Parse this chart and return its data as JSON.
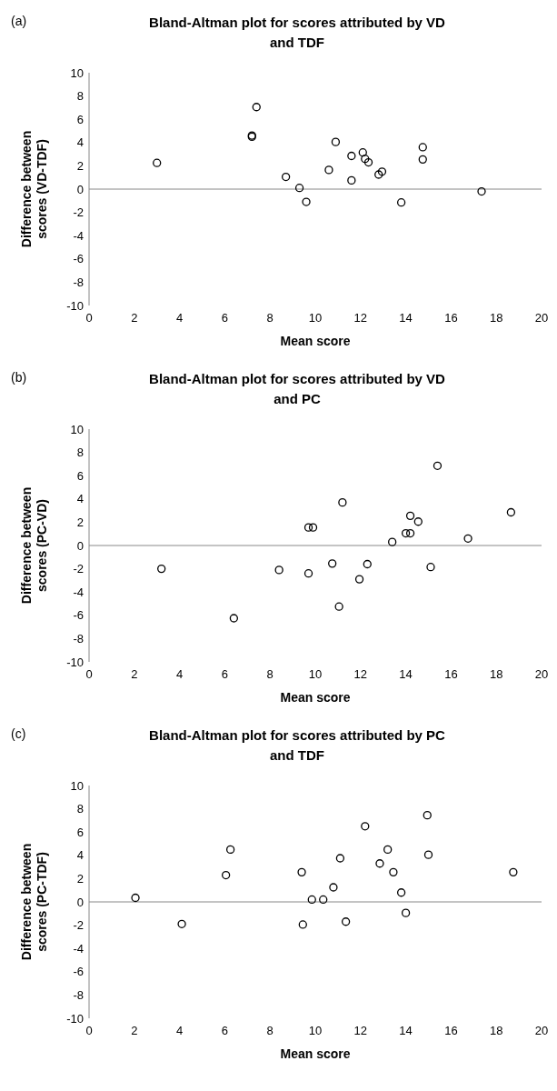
{
  "chart_data": [
    {
      "type": "scatter",
      "title": "Bland-Altman plot for scores attributed by VD and TDF",
      "annotations": [
        "(a)"
      ],
      "xlabel": "Mean score",
      "ylabel": "Difference between scores (VD-TDF)",
      "marker": "circle",
      "xlim": [
        0,
        20
      ],
      "xticks": [
        0,
        2,
        4,
        6,
        8,
        10,
        12,
        14,
        16,
        18,
        20
      ],
      "ylim": [
        -10,
        10
      ],
      "yticks": [
        -10,
        -8,
        -6,
        -4,
        -2,
        0,
        2,
        4,
        6,
        8,
        10
      ],
      "series": [
        {
          "color": "#000000",
          "x": [
            3.0,
            7.2,
            7.2,
            7.4,
            8.7,
            9.3,
            9.6,
            10.6,
            10.9,
            11.6,
            11.6,
            12.1,
            12.2,
            12.35,
            12.8,
            12.95,
            13.8,
            14.75,
            14.75,
            17.35
          ],
          "values": [
            2.25,
            4.5,
            4.6,
            7.05,
            1.05,
            0.1,
            -1.1,
            1.65,
            4.05,
            2.85,
            0.75,
            3.15,
            2.6,
            2.3,
            1.25,
            1.5,
            -1.15,
            3.6,
            2.55,
            -0.2
          ]
        }
      ]
    },
    {
      "type": "scatter",
      "title": "Bland-Altman plot for scores attributed by VD and PC",
      "annotations": [
        "(b)"
      ],
      "xlabel": "Mean score",
      "ylabel": "Difference between scores (PC-VD)",
      "marker": "circle",
      "xlim": [
        0,
        20
      ],
      "xticks": [
        0,
        2,
        4,
        6,
        8,
        10,
        12,
        14,
        16,
        18,
        20
      ],
      "ylim": [
        -10,
        10
      ],
      "yticks": [
        -10,
        -8,
        -6,
        -4,
        -2,
        0,
        2,
        4,
        6,
        8,
        10
      ],
      "series": [
        {
          "color": "#000000",
          "x": [
            3.2,
            6.4,
            8.4,
            9.7,
            9.7,
            9.9,
            10.75,
            11.05,
            11.2,
            11.95,
            12.3,
            13.4,
            14.0,
            14.2,
            14.2,
            14.55,
            15.1,
            15.4,
            16.75,
            18.65
          ],
          "values": [
            -2.0,
            -6.25,
            -2.1,
            -2.4,
            1.55,
            1.55,
            -1.55,
            -5.25,
            3.7,
            -2.9,
            -1.6,
            0.3,
            1.05,
            1.05,
            2.55,
            2.05,
            -1.85,
            6.85,
            0.6,
            2.85
          ]
        }
      ]
    },
    {
      "type": "scatter",
      "title": "Bland-Altman plot for scores attributed by PC and TDF",
      "annotations": [
        "(c)"
      ],
      "xlabel": "Mean score",
      "ylabel": "Difference between scores (PC-TDF)",
      "marker": "circle",
      "xlim": [
        0,
        20
      ],
      "xticks": [
        0,
        2,
        4,
        6,
        8,
        10,
        12,
        14,
        16,
        18,
        20
      ],
      "ylim": [
        -10,
        10
      ],
      "yticks": [
        -10,
        -8,
        -6,
        -4,
        -2,
        0,
        2,
        4,
        6,
        8,
        10
      ],
      "series": [
        {
          "color": "#000000",
          "x": [
            2.05,
            4.1,
            6.05,
            6.25,
            9.4,
            9.45,
            9.85,
            10.35,
            10.8,
            11.1,
            11.35,
            12.2,
            12.85,
            13.2,
            13.45,
            13.8,
            14.0,
            14.95,
            15.0,
            18.75
          ],
          "values": [
            0.35,
            -1.9,
            2.3,
            4.5,
            2.55,
            -1.95,
            0.2,
            0.2,
            1.25,
            3.75,
            -1.7,
            6.5,
            3.3,
            4.5,
            2.55,
            0.8,
            -0.95,
            7.45,
            4.05,
            2.55
          ]
        }
      ]
    }
  ]
}
